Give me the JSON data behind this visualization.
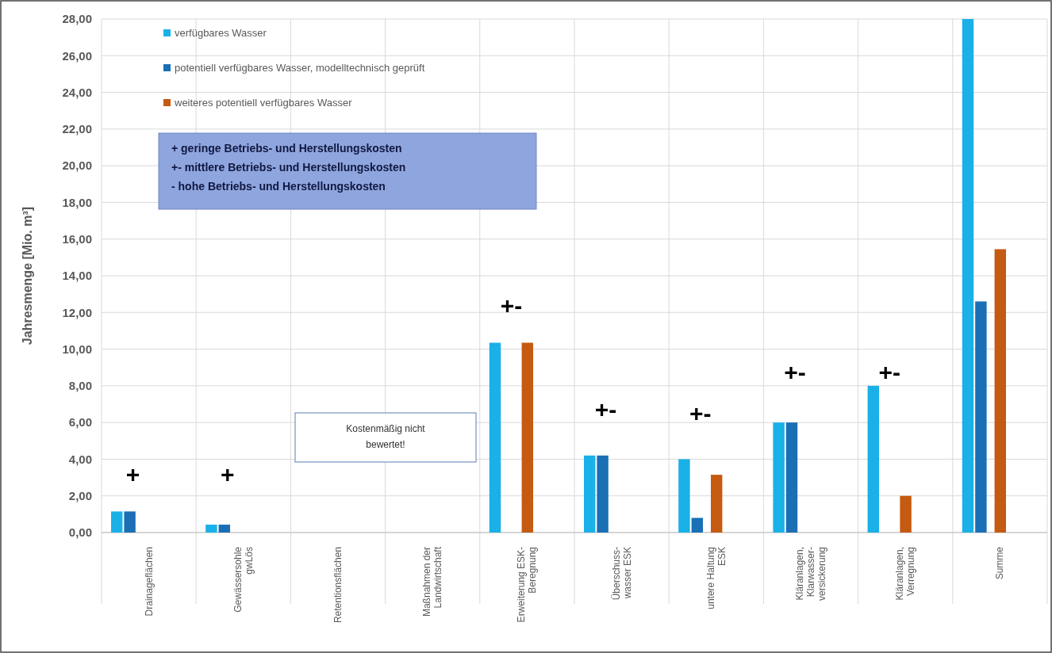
{
  "chart_data": {
    "type": "bar",
    "ylabel": "Jahresmenge [Mio. m³]",
    "categories": [
      "Drainageflächen",
      "Gewässersohle\ngwLös",
      "Retentionsflächen",
      "Maßnahmen der\nLandwirtschaft",
      "Erweiterung ESK-\nBeregnung",
      "Überschuss-\nwasser ESK",
      "untere Haltung\nESK",
      "Kläranlagen,\nKlarwasser-\nversickerung",
      "Kläranlagen,\nVerregnung",
      "Summe"
    ],
    "series": [
      {
        "name": "verfügbares Wasser",
        "color": "#1ab0e8",
        "values": [
          1.15,
          0.43,
          null,
          null,
          10.35,
          4.2,
          4.0,
          6.0,
          8.0,
          28.0
        ]
      },
      {
        "name": "potentiell verfügbares Wasser, modelltechnisch geprüft",
        "color": "#1a6fb5",
        "values": [
          1.15,
          0.43,
          null,
          null,
          null,
          4.2,
          0.8,
          6.0,
          null,
          12.6
        ]
      },
      {
        "name": "weiteres potentiell verfügbares Wasser",
        "color": "#c55a11",
        "values": [
          null,
          null,
          null,
          null,
          10.35,
          null,
          3.15,
          null,
          2.0,
          15.45
        ]
      }
    ],
    "ylim": [
      0,
      28
    ],
    "yticks": [
      {
        "value": 0,
        "label": "0,00"
      },
      {
        "value": 2,
        "label": "2,00"
      },
      {
        "value": 4,
        "label": "4,00"
      },
      {
        "value": 6,
        "label": "6,00"
      },
      {
        "value": 8,
        "label": "8,00"
      },
      {
        "value": 10,
        "label": "10,00"
      },
      {
        "value": 12,
        "label": "12,00"
      },
      {
        "value": 14,
        "label": "14,00"
      },
      {
        "value": 16,
        "label": "16,00"
      },
      {
        "value": 18,
        "label": "18,00"
      },
      {
        "value": 20,
        "label": "20,00"
      },
      {
        "value": 22,
        "label": "22,00"
      },
      {
        "value": 24,
        "label": "24,00"
      },
      {
        "value": 26,
        "label": "26,00"
      },
      {
        "value": 28,
        "label": "28,00"
      }
    ],
    "grid": true,
    "legend": "top left",
    "annotations": [
      "+ geringe Betriebs- und Herstellungskosten\n+- mittlere Betriebs- und Herstellungskosten\n- hohe Betriebs- und Herstellungskosten",
      "Kostenmäßig nicht\nbewertet!",
      "+",
      "+",
      "+-",
      "+-",
      "+-",
      "+-",
      "+-"
    ]
  }
}
